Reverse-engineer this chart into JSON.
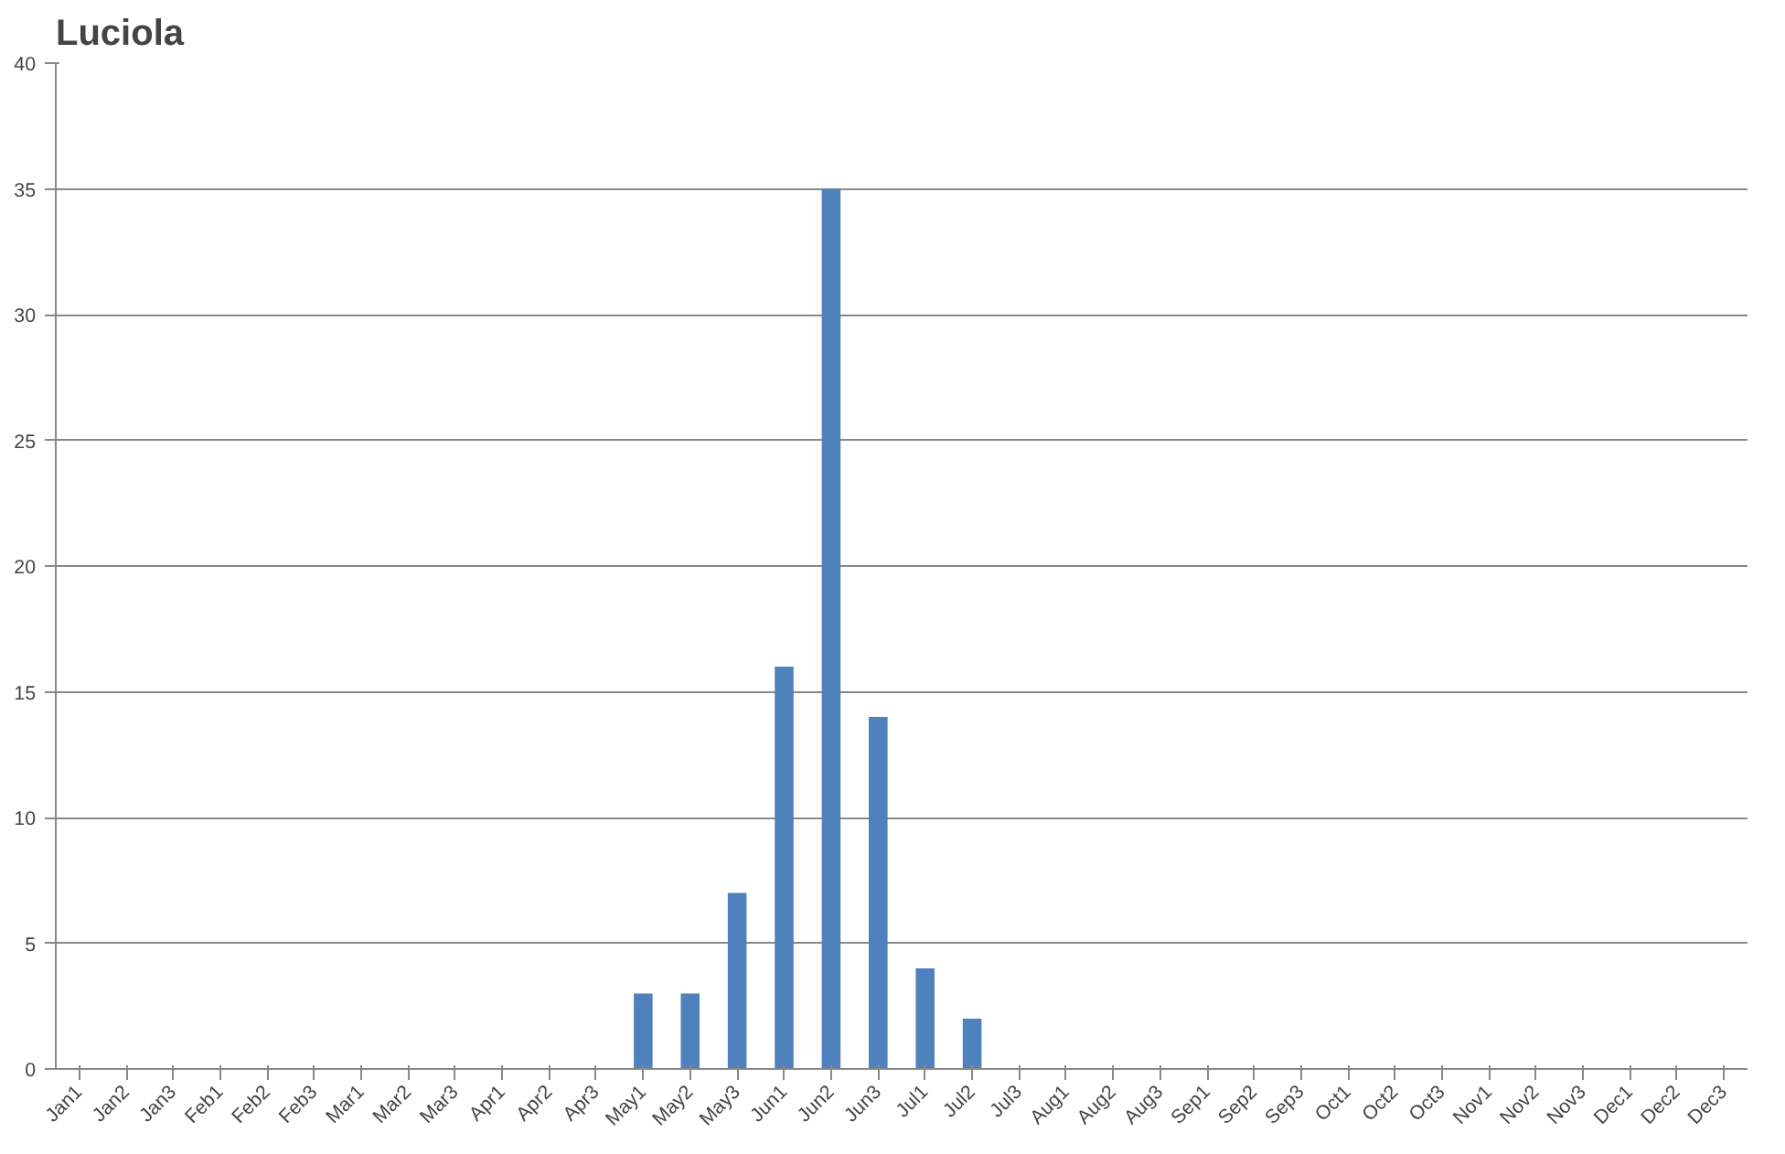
{
  "chart_data": {
    "type": "bar",
    "title": "Luciola",
    "categories": [
      "Jan1",
      "Jan2",
      "Jan3",
      "Feb1",
      "Feb2",
      "Feb3",
      "Mar1",
      "Mar2",
      "Mar3",
      "Apr1",
      "Apr2",
      "Apr3",
      "May1",
      "May2",
      "May3",
      "Jun1",
      "Jun2",
      "Jun3",
      "Jul1",
      "Jul2",
      "Jul3",
      "Aug1",
      "Aug2",
      "Aug3",
      "Sep1",
      "Sep2",
      "Sep3",
      "Oct1",
      "Oct2",
      "Oct3",
      "Nov1",
      "Nov2",
      "Nov3",
      "Dec1",
      "Dec2",
      "Dec3"
    ],
    "values": [
      0,
      0,
      0,
      0,
      0,
      0,
      0,
      0,
      0,
      0,
      0,
      0,
      3,
      3,
      7,
      16,
      35,
      14,
      4,
      2,
      0,
      0,
      0,
      0,
      0,
      0,
      0,
      0,
      0,
      0,
      0,
      0,
      0,
      0,
      0,
      0
    ],
    "color": "#4f81bd",
    "ylim": [
      0,
      40
    ],
    "yticks": [
      0,
      5,
      10,
      15,
      20,
      25,
      30,
      35,
      40
    ],
    "grid": "y"
  }
}
